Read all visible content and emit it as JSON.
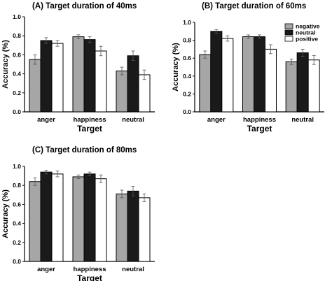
{
  "chart_data": [
    {
      "type": "bar",
      "title": "(A) Target duration of 40ms",
      "xlabel": "Target",
      "ylabel": "Accuracy (%)",
      "ylim": [
        0,
        1.0
      ],
      "yticks": [
        "0.0",
        "0.2",
        "0.4",
        "0.6",
        "0.8",
        "1.0"
      ],
      "categories": [
        "anger",
        "happiness",
        "neutral"
      ],
      "series": [
        {
          "name": "negative",
          "color": "#a6a6a6",
          "values": [
            0.55,
            0.79,
            0.43
          ],
          "errors": [
            0.05,
            0.02,
            0.04
          ]
        },
        {
          "name": "neutral",
          "color": "#1a1a1a",
          "values": [
            0.75,
            0.76,
            0.59
          ],
          "errors": [
            0.03,
            0.03,
            0.05
          ]
        },
        {
          "name": "positive",
          "color": "#ffffff",
          "values": [
            0.72,
            0.64,
            0.39
          ],
          "errors": [
            0.03,
            0.05,
            0.05
          ]
        }
      ],
      "legend": false
    },
    {
      "type": "bar",
      "title": "(B) Target duration of 60ms",
      "xlabel": "Target",
      "ylabel": "Accuracy (%)",
      "ylim": [
        0,
        1.0
      ],
      "yticks": [
        "0.0",
        "0.2",
        "0.4",
        "0.6",
        "0.8",
        "1.0"
      ],
      "categories": [
        "anger",
        "happiness",
        "neutral"
      ],
      "series": [
        {
          "name": "negative",
          "color": "#a6a6a6",
          "values": [
            0.64,
            0.84,
            0.56
          ],
          "errors": [
            0.04,
            0.02,
            0.03
          ]
        },
        {
          "name": "neutral",
          "color": "#1a1a1a",
          "values": [
            0.9,
            0.84,
            0.66
          ],
          "errors": [
            0.02,
            0.02,
            0.04
          ]
        },
        {
          "name": "positive",
          "color": "#ffffff",
          "values": [
            0.82,
            0.7,
            0.58
          ],
          "errors": [
            0.03,
            0.05,
            0.05
          ]
        }
      ],
      "legend": true,
      "legend_position": "top-right"
    },
    {
      "type": "bar",
      "title": "(C) Target duration of 80ms",
      "xlabel": "Target",
      "ylabel": "Accuracy (%)",
      "ylim": [
        0,
        1.0
      ],
      "yticks": [
        "0.0",
        "0.2",
        "0.4",
        "0.6",
        "0.8",
        "1.0"
      ],
      "categories": [
        "anger",
        "happiness",
        "neutral"
      ],
      "series": [
        {
          "name": "negative",
          "color": "#a6a6a6",
          "values": [
            0.84,
            0.89,
            0.71
          ],
          "errors": [
            0.04,
            0.02,
            0.04
          ]
        },
        {
          "name": "neutral",
          "color": "#1a1a1a",
          "values": [
            0.94,
            0.92,
            0.74
          ],
          "errors": [
            0.02,
            0.02,
            0.05
          ]
        },
        {
          "name": "positive",
          "color": "#ffffff",
          "values": [
            0.92,
            0.87,
            0.67
          ],
          "errors": [
            0.03,
            0.04,
            0.04
          ]
        }
      ],
      "legend": false
    }
  ]
}
